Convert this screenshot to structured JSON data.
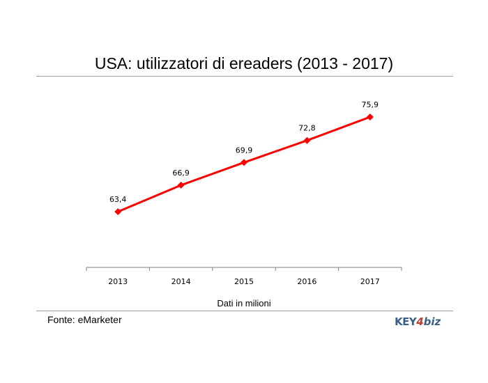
{
  "chart_data": {
    "type": "line",
    "title": "USA: utilizzatori di ereaders (2013 - 2017)",
    "xlabel": "Dati in milioni",
    "ylabel": "",
    "categories": [
      "2013",
      "2014",
      "2015",
      "2016",
      "2017"
    ],
    "series": [
      {
        "values": [
          63.4,
          66.9,
          69.9,
          72.8,
          75.9
        ],
        "labels": [
          "63,4",
          "66,9",
          "69,9",
          "72,8",
          "75,9"
        ],
        "color": "#ff0000",
        "marker": "diamond"
      }
    ],
    "grid": false,
    "legend": "none"
  },
  "footer": {
    "source": "Fonte: eMarketer"
  },
  "logo": {
    "key": "KEY",
    "four": "4",
    "biz": "biz"
  }
}
